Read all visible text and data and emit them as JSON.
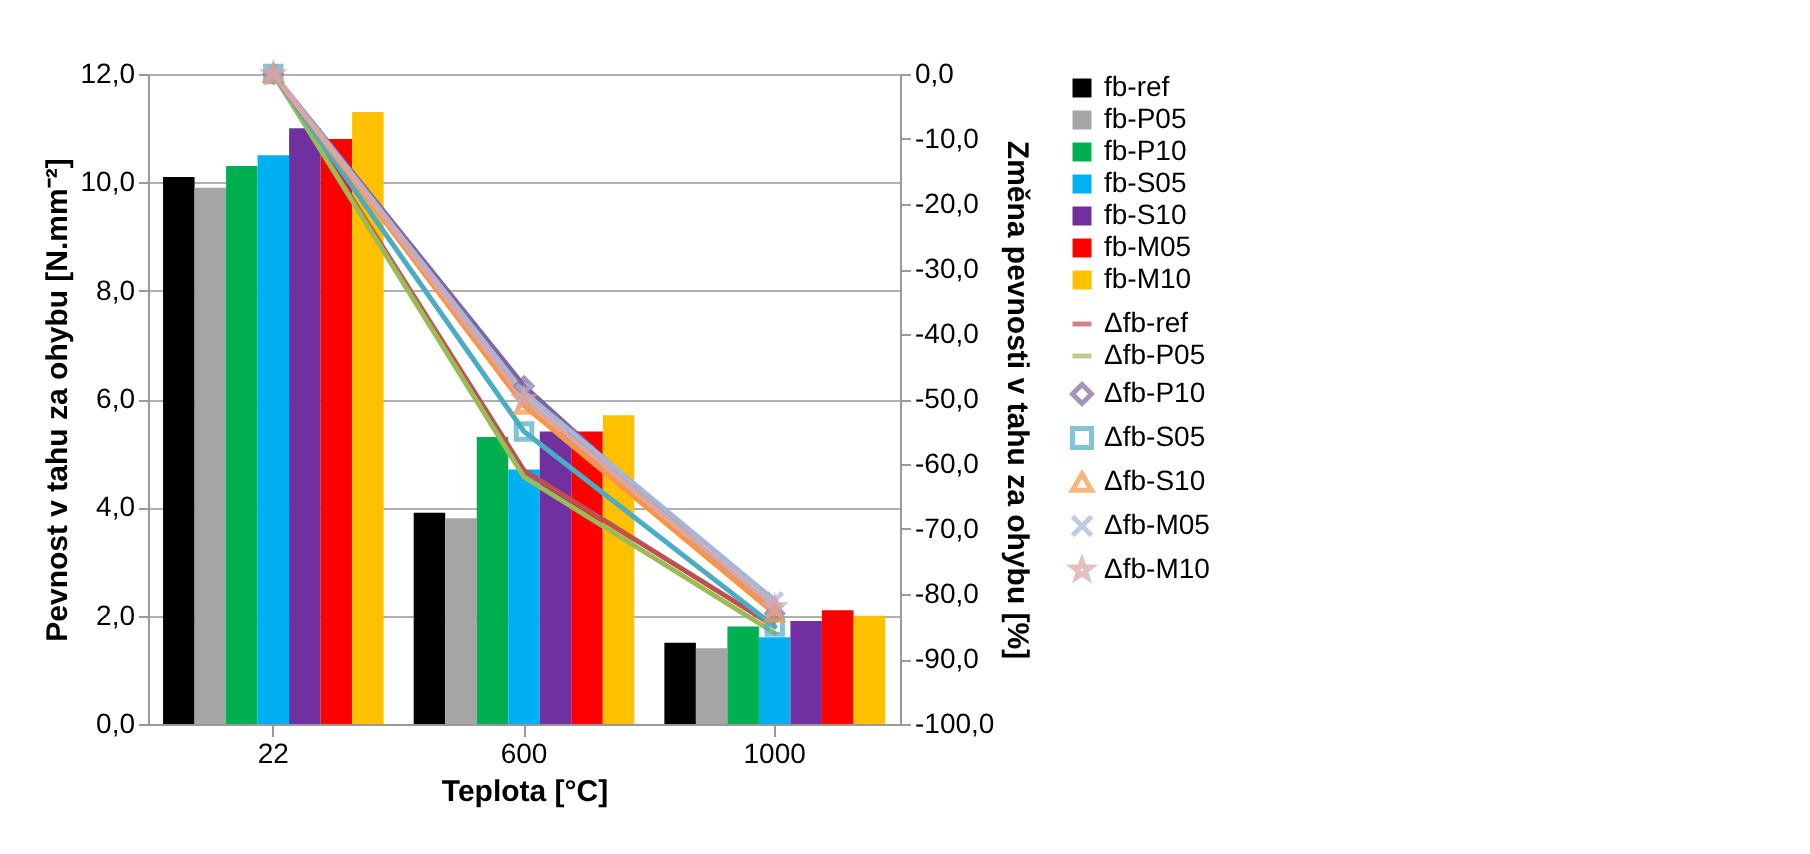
{
  "chart_data": {
    "type": "bar",
    "xlabel": "Teplota [°C]",
    "ylabel": "Pevnost v tahu za ohybu [N.mm⁻²]",
    "y2label": "Změna pevnosti v tahu za ohybu [%]",
    "categories": [
      "22",
      "600",
      "1000"
    ],
    "series": [
      {
        "name": "fb-ref",
        "color": "#000000",
        "values": [
          10.1,
          3.9,
          1.5
        ]
      },
      {
        "name": "fb-P05",
        "color": "#a5a5a5",
        "values": [
          9.9,
          3.8,
          1.4
        ]
      },
      {
        "name": "fb-P10",
        "color": "#00b050",
        "values": [
          10.3,
          5.3,
          1.8
        ]
      },
      {
        "name": "fb-S05",
        "color": "#00b0f0",
        "values": [
          10.5,
          4.7,
          1.6
        ]
      },
      {
        "name": "fb-S10",
        "color": "#7030a0",
        "values": [
          11.0,
          5.4,
          1.9
        ]
      },
      {
        "name": "fb-M05",
        "color": "#ff0000",
        "values": [
          10.8,
          5.4,
          2.1
        ]
      },
      {
        "name": "fb-M10",
        "color": "#ffc000",
        "values": [
          11.3,
          5.7,
          2.0
        ]
      },
      {
        "name": "Δfb-ref",
        "type": "line",
        "axis": "y2",
        "marker": "none",
        "color": "#c0504d",
        "values": [
          0,
          -61,
          -85
        ]
      },
      {
        "name": "Δfb-P05",
        "type": "line",
        "axis": "y2",
        "marker": "none",
        "color": "#9bbb59",
        "values": [
          0,
          -62,
          -86
        ]
      },
      {
        "name": "Δfb-P10",
        "type": "line",
        "axis": "y2",
        "marker": "diamond",
        "color": "#8064a2",
        "values": [
          0,
          -48,
          -83
        ]
      },
      {
        "name": "Δfb-S05",
        "type": "line",
        "axis": "y2",
        "marker": "square",
        "color": "#4bacc6",
        "values": [
          0,
          -55,
          -85
        ]
      },
      {
        "name": "Δfb-S10",
        "type": "line",
        "axis": "y2",
        "marker": "triangle",
        "color": "#f79646",
        "values": [
          0,
          -51,
          -83
        ]
      },
      {
        "name": "Δfb-M05",
        "type": "line",
        "axis": "y2",
        "marker": "cross",
        "color": "#a5b6d9",
        "values": [
          0,
          -49,
          -81
        ]
      },
      {
        "name": "Δfb-M10",
        "type": "line",
        "axis": "y2",
        "marker": "star",
        "color": "#d9a5a5",
        "values": [
          0,
          -50,
          -82
        ]
      }
    ],
    "ylim": [
      0,
      12
    ],
    "yticks": [
      {
        "value": 0,
        "label": "0,0"
      },
      {
        "value": 2,
        "label": "2,0"
      },
      {
        "value": 4,
        "label": "4,0"
      },
      {
        "value": 6,
        "label": "6,0"
      },
      {
        "value": 8,
        "label": "8,0"
      },
      {
        "value": 10,
        "label": "10,0"
      },
      {
        "value": 12,
        "label": "12,0"
      }
    ],
    "y2lim": [
      -100,
      0
    ],
    "y2ticks": [
      {
        "value": 0,
        "label": "0,0"
      },
      {
        "value": -10,
        "label": "-10,0"
      },
      {
        "value": -20,
        "label": "-20,0"
      },
      {
        "value": -30,
        "label": "-30,0"
      },
      {
        "value": -40,
        "label": "-40,0"
      },
      {
        "value": -50,
        "label": "-50,0"
      },
      {
        "value": -60,
        "label": "-60,0"
      },
      {
        "value": -70,
        "label": "-70,0"
      },
      {
        "value": -80,
        "label": "-80,0"
      },
      {
        "value": -90,
        "label": "-90,0"
      },
      {
        "value": -100,
        "label": "-100,0"
      }
    ],
    "grid": "y",
    "legend": "right"
  }
}
